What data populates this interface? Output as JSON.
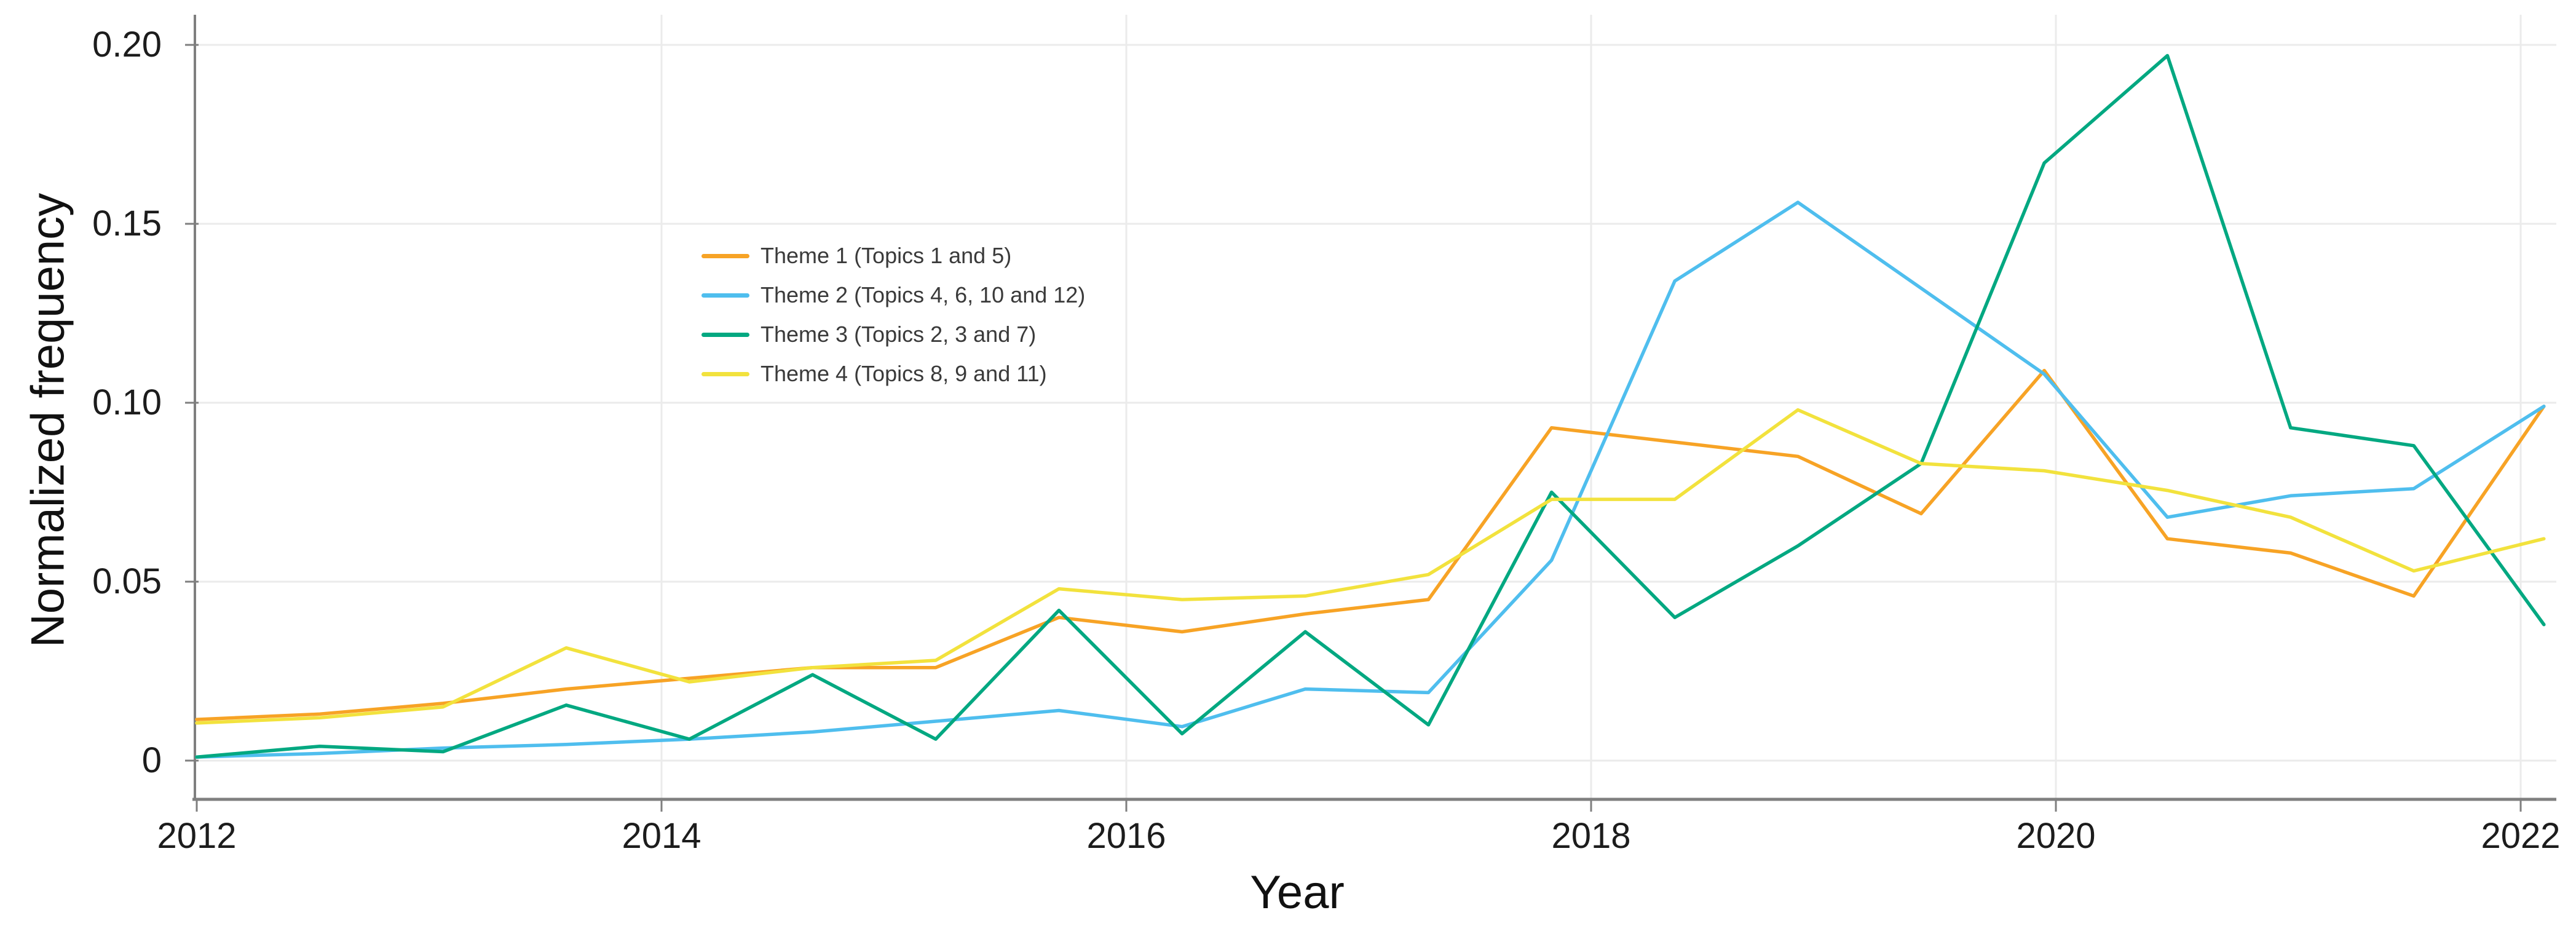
{
  "chart_data": {
    "type": "line",
    "title": "",
    "xlabel": "Year",
    "ylabel": "Normalized frequency",
    "grid": true,
    "legend_position": "inside-left-upper",
    "xlim": [
      2012,
      2022.16
    ],
    "ylim": [
      -0.011,
      0.209
    ],
    "x_tick_values": [
      2012,
      2014,
      2016,
      2018,
      2020,
      2022
    ],
    "x_tick_labels": [
      "2012",
      "2014",
      "2016",
      "2018",
      "2020",
      "2022"
    ],
    "y_tick_values": [
      0,
      0.05,
      0.1,
      0.15,
      0.2
    ],
    "y_tick_labels": [
      "0",
      "0.05",
      "0.10",
      "0.15",
      "0.20"
    ],
    "x": [
      2012.0,
      2012.53,
      2013.06,
      2013.59,
      2014.12,
      2014.65,
      2015.18,
      2015.71,
      2016.24,
      2016.77,
      2017.3,
      2017.83,
      2018.36,
      2018.89,
      2019.42,
      2019.95,
      2020.48,
      2021.01,
      2021.54,
      2022.1
    ],
    "series": [
      {
        "name": "Theme 1 (Topics 1 and 5)",
        "color": "#F7A325",
        "values": [
          0.0115,
          0.013,
          0.016,
          0.02,
          0.023,
          0.026,
          0.026,
          0.04,
          0.036,
          0.041,
          0.045,
          0.093,
          0.089,
          0.085,
          0.069,
          0.109,
          0.062,
          0.058,
          0.046,
          0.099
        ]
      },
      {
        "name": "Theme 2 (Topics 4, 6, 10 and 12)",
        "color": "#4FBEEE",
        "values": [
          0.001,
          0.002,
          0.0035,
          0.0045,
          0.006,
          0.008,
          0.011,
          0.014,
          0.0095,
          0.02,
          0.019,
          0.056,
          0.134,
          0.156,
          0.132,
          0.108,
          0.068,
          0.074,
          0.076,
          0.099
        ]
      },
      {
        "name": "Theme 3 (Topics 2, 3 and 7)",
        "color": "#02A881",
        "values": [
          0.001,
          0.004,
          0.0025,
          0.0155,
          0.006,
          0.024,
          0.006,
          0.042,
          0.0075,
          0.036,
          0.01,
          0.075,
          0.04,
          0.06,
          0.083,
          0.167,
          0.197,
          0.093,
          0.088,
          0.038
        ]
      },
      {
        "name": "Theme 4 (Topics 8, 9 and 11)",
        "color": "#F2E23D",
        "values": [
          0.0105,
          0.012,
          0.015,
          0.0315,
          0.022,
          0.026,
          0.028,
          0.048,
          0.045,
          0.046,
          0.052,
          0.073,
          0.073,
          0.098,
          0.083,
          0.081,
          0.0755,
          0.068,
          0.053,
          0.062
        ]
      }
    ],
    "colors": {
      "grid": "#EBEBEB",
      "spine": "#7F7F7F",
      "tick_text": "#1C1C1C",
      "axis_label_text": "#111111",
      "legend_text": "#3A3A3A",
      "background": "#FFFFFF"
    }
  }
}
